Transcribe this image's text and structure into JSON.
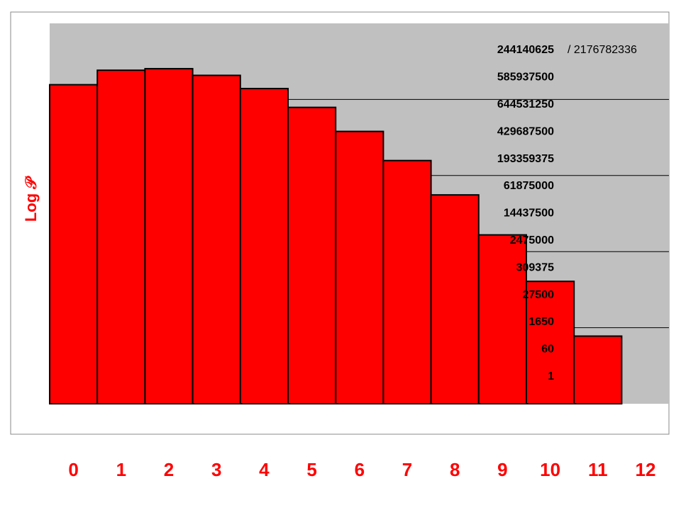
{
  "chart_data": {
    "type": "bar",
    "y_label": "Log 𝒫",
    "annotation": "/ 2176782336",
    "categories": [
      "0",
      "1",
      "2",
      "3",
      "4",
      "5",
      "6",
      "7",
      "8",
      "9",
      "10",
      "11",
      "12"
    ],
    "values": [
      244140625,
      585937500,
      644531250,
      429687500,
      193359375,
      61875000,
      14437500,
      2475000,
      309375,
      27500,
      1650,
      60,
      1
    ],
    "color": "#ff0000",
    "log_scale": true,
    "ylim": [
      1,
      10000000000
    ],
    "yticks": [
      100,
      10000,
      1000000,
      100000000
    ],
    "grid": true
  }
}
